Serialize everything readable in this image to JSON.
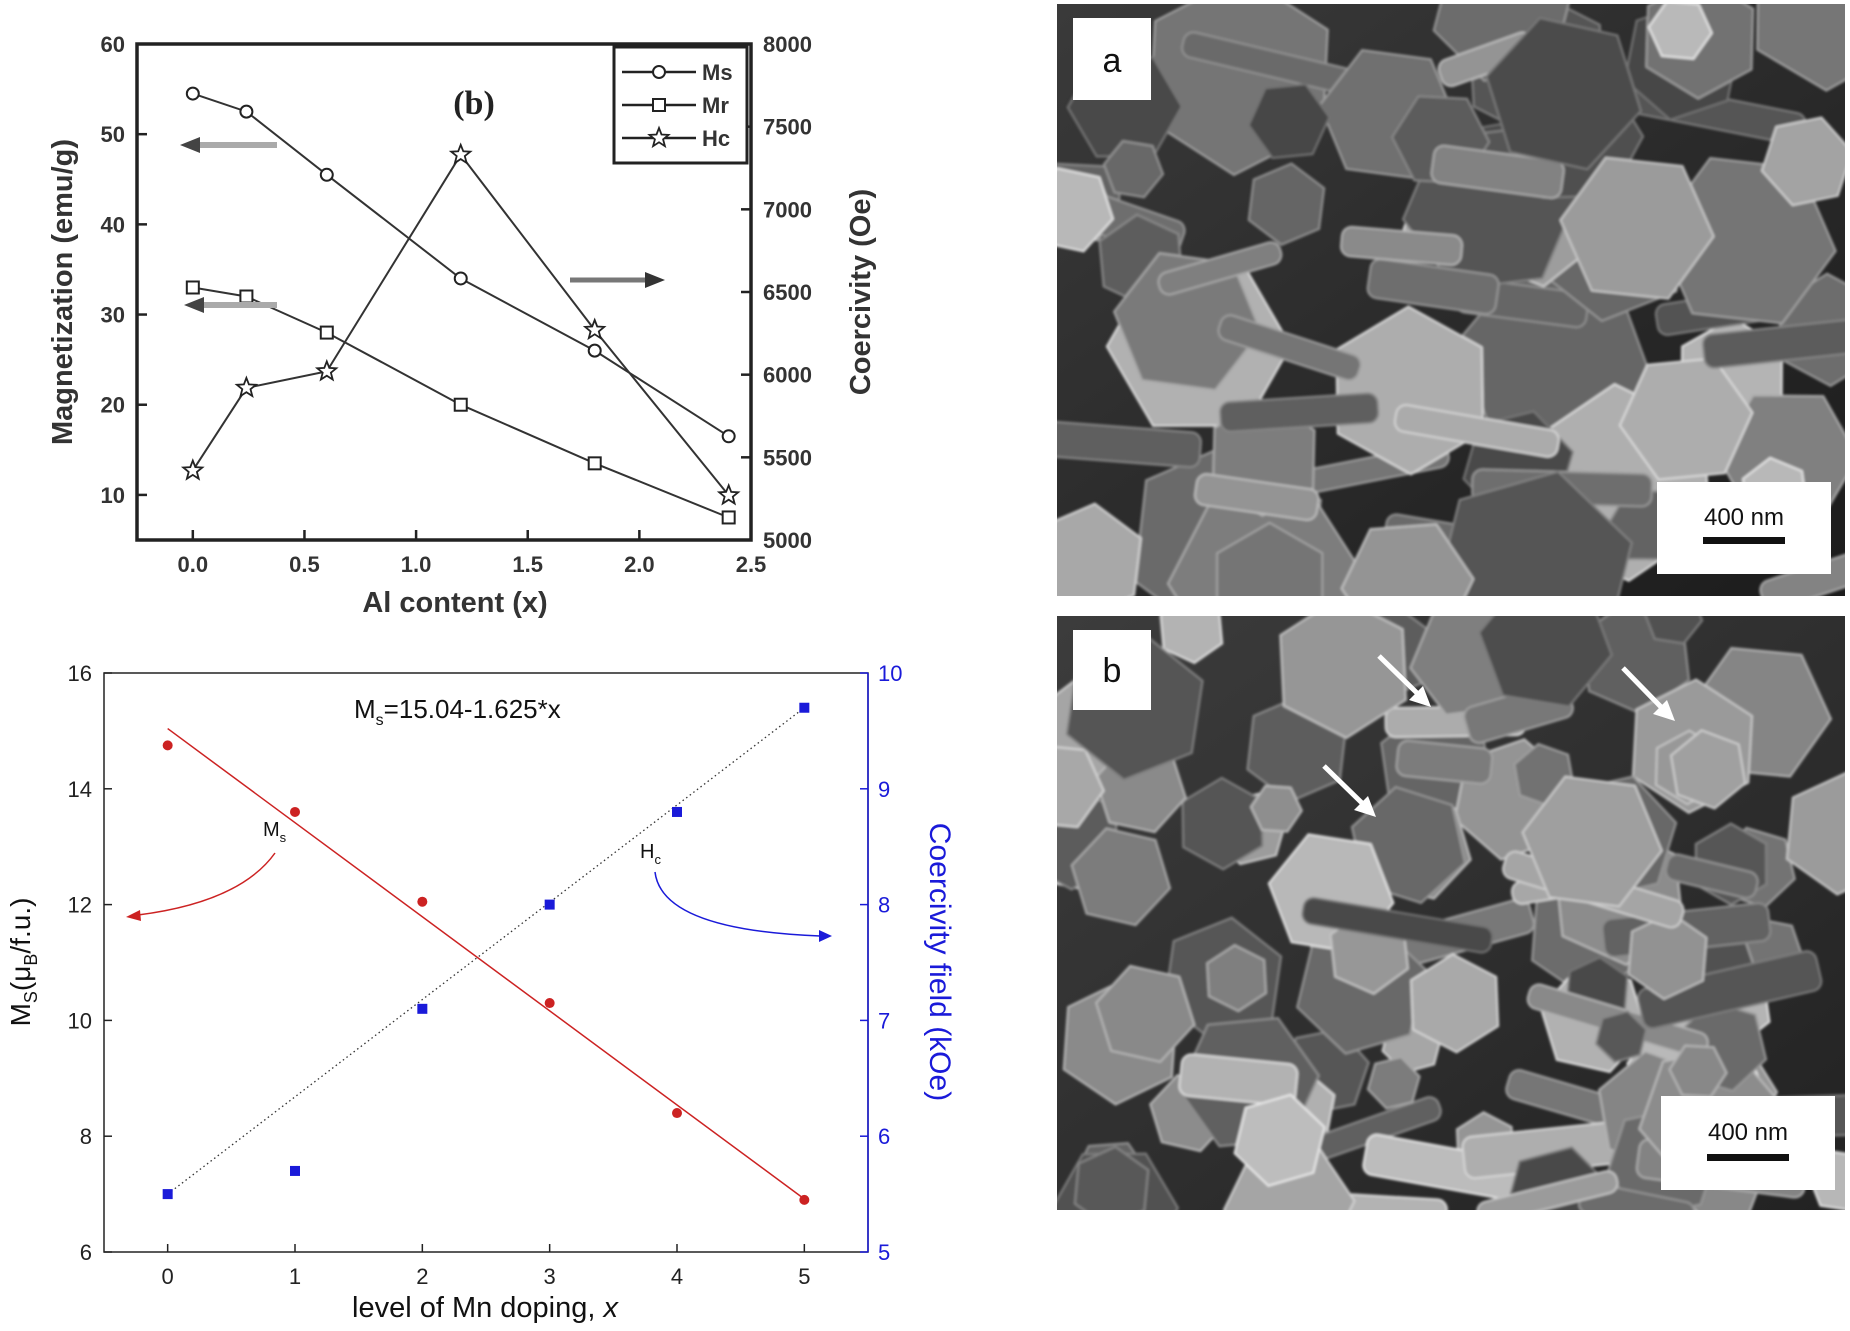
{
  "chart_data": [
    {
      "type": "line",
      "panel_label": "(b)",
      "xlabel": "Al content (x)",
      "ylabel": "Magnetization (emu/g)",
      "y2label": "Coercivity (Oe)",
      "xlim": [
        -0.25,
        2.5
      ],
      "ylim": [
        5,
        60
      ],
      "y2lim": [
        5000,
        8000
      ],
      "xticks": [
        "0.0",
        "0.5",
        "1.0",
        "1.5",
        "2.0",
        "2.5"
      ],
      "yticks": [
        "10",
        "20",
        "30",
        "40",
        "50",
        "60"
      ],
      "y2ticks": [
        "5000",
        "5500",
        "6000",
        "6500",
        "7000",
        "7500",
        "8000"
      ],
      "legend_position": "top-right",
      "x": [
        0.0,
        0.24,
        0.6,
        1.2,
        1.8,
        2.4
      ],
      "series": [
        {
          "name": "Ms",
          "axis": "left",
          "marker": "circle",
          "values": [
            54.5,
            52.5,
            45.5,
            34,
            26,
            16.5
          ]
        },
        {
          "name": "Mr",
          "axis": "left",
          "marker": "square",
          "values": [
            33,
            32,
            28,
            20,
            13.5,
            7.5
          ]
        },
        {
          "name": "Hc",
          "axis": "right",
          "marker": "star",
          "values": [
            5420,
            5920,
            6020,
            7330,
            6270,
            5270
          ]
        }
      ]
    },
    {
      "type": "scatter",
      "equation": {
        "main": "M",
        "sub": "s",
        "rest": "=15.04-1.625*x"
      },
      "xlabel": {
        "main": "level of Mn doping, ",
        "italic": "x"
      },
      "ylabel": {
        "p1": "M",
        "s1": "S",
        "p2": "(μ",
        "s2": "B",
        "p3": "/f.u.)"
      },
      "y2label": "Coercivity field (kOe)",
      "xlim": [
        -0.5,
        5.5
      ],
      "ylim": [
        6,
        16
      ],
      "y2lim": [
        5,
        10
      ],
      "xticks": [
        "0",
        "1",
        "2",
        "3",
        "4",
        "5"
      ],
      "yticks": [
        "6",
        "8",
        "10",
        "12",
        "14",
        "16"
      ],
      "y2ticks": [
        "5",
        "6",
        "7",
        "8",
        "9",
        "10"
      ],
      "annotations": [
        {
          "main": "M",
          "sub": "s",
          "target": "left-axis"
        },
        {
          "main": "H",
          "sub": "c",
          "target": "right-axis"
        }
      ],
      "x": [
        0,
        1,
        2,
        3,
        4,
        5
      ],
      "series": [
        {
          "axis": "left",
          "color": "#cc2222",
          "values": [
            14.75,
            13.6,
            12.05,
            10.3,
            8.4,
            6.9
          ]
        },
        {
          "axis": "right",
          "color": "#1a1ad9",
          "values": [
            5.5,
            5.7,
            7.1,
            8.0,
            8.8,
            9.7
          ]
        }
      ],
      "fit_left": {
        "intercept": 15.04,
        "slope": -1.625,
        "color": "#cc2222"
      },
      "fit_right": {
        "x0": 0,
        "y0": 5.5,
        "x1": 5,
        "y1": 9.7,
        "style": "dotted"
      }
    }
  ],
  "images": [
    {
      "label": "a",
      "scalebar": "400 nm"
    },
    {
      "label": "b",
      "scalebar": "400 nm"
    }
  ],
  "colors": {
    "left_fit": "#cc2222",
    "right_series": "#1a1ad9",
    "frame": "#222222"
  }
}
